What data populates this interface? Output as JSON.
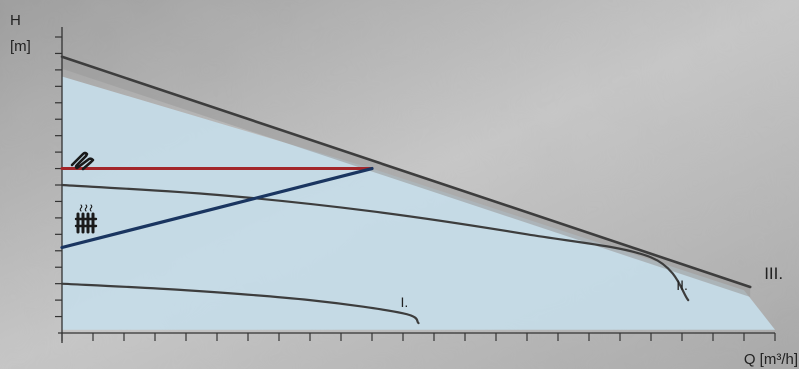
{
  "chart_data": {
    "type": "line",
    "title": "",
    "ylabel": "H",
    "yunit": "[m]",
    "xlabel": "Q [m³/h]",
    "grid": false,
    "legend": "none",
    "xlim": [
      0,
      23
    ],
    "ylim": [
      0,
      9
    ],
    "colors": {
      "background": "#b3b3b3",
      "operating_area": "#c6dce8",
      "max_curve": "#3d3d3d",
      "speed_curves": "#3d3d3d",
      "constant_pressure": "#a3262a",
      "proportional_pressure": "#1a3560",
      "axis": "#333333"
    },
    "icons": [
      "radiator-icon",
      "floor-heating-icon"
    ],
    "series": [
      {
        "name": "III.",
        "mode": "max-curve",
        "points": [
          [
            0,
            8.4
          ],
          [
            22.2,
            1.4
          ]
        ]
      },
      {
        "name": "II.",
        "mode": "speed-curve",
        "points": [
          [
            0,
            4.5
          ],
          [
            5,
            4.2
          ],
          [
            10,
            3.7
          ],
          [
            15,
            3.0
          ],
          [
            19,
            2.3
          ],
          [
            20.2,
            1.0
          ]
        ]
      },
      {
        "name": "I.",
        "mode": "speed-curve",
        "points": [
          [
            0,
            1.5
          ],
          [
            4,
            1.3
          ],
          [
            8,
            1.0
          ],
          [
            11,
            0.6
          ],
          [
            11.5,
            0.3
          ]
        ]
      },
      {
        "name": "",
        "mode": "constant-pressure",
        "points": [
          [
            0,
            5.0
          ],
          [
            10,
            5.0
          ]
        ]
      },
      {
        "name": "",
        "mode": "proportional-pressure",
        "points": [
          [
            0,
            2.6
          ],
          [
            10,
            5.0
          ]
        ]
      }
    ],
    "area": {
      "points": [
        [
          0,
          0.1
        ],
        [
          0,
          7.8
        ],
        [
          10,
          5.0
        ],
        [
          22.0,
          1.3
        ],
        [
          23.0,
          0.1
        ]
      ]
    }
  }
}
